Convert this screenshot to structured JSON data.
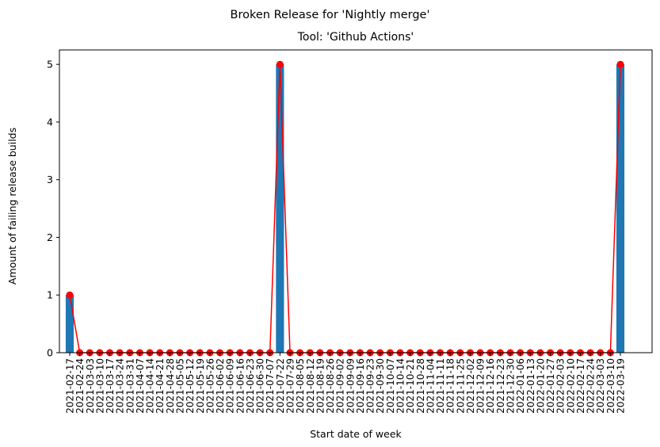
{
  "chart_data": {
    "type": "bar",
    "title": "Broken Release for 'Nightly merge'",
    "subtitle": "Tool: 'Github Actions'",
    "xlabel": "Start date of week",
    "ylabel": "Amount of failing release builds",
    "ylim": [
      0,
      5.25
    ],
    "yticks": [
      0,
      1,
      2,
      3,
      4,
      5
    ],
    "grid": false,
    "categories": [
      "2021-02-17",
      "2021-02-24",
      "2021-03-03",
      "2021-03-10",
      "2021-03-17",
      "2021-03-24",
      "2021-03-31",
      "2021-04-07",
      "2021-04-14",
      "2021-04-21",
      "2021-04-28",
      "2021-05-05",
      "2021-05-12",
      "2021-05-19",
      "2021-05-26",
      "2021-06-02",
      "2021-06-09",
      "2021-06-16",
      "2021-06-23",
      "2021-06-30",
      "2021-07-07",
      "2021-07-22",
      "2021-07-29",
      "2021-08-05",
      "2021-08-12",
      "2021-08-19",
      "2021-08-26",
      "2021-09-02",
      "2021-09-09",
      "2021-09-16",
      "2021-09-23",
      "2021-09-30",
      "2021-10-07",
      "2021-10-14",
      "2021-10-21",
      "2021-10-28",
      "2021-11-04",
      "2021-11-11",
      "2021-11-18",
      "2021-11-25",
      "2021-12-02",
      "2021-12-09",
      "2021-12-16",
      "2021-12-23",
      "2021-12-30",
      "2022-01-06",
      "2022-01-13",
      "2022-01-20",
      "2022-01-27",
      "2022-02-03",
      "2022-02-10",
      "2022-02-17",
      "2022-02-24",
      "2022-03-03",
      "2022-03-10",
      "2022-03-19"
    ],
    "series": [
      {
        "type": "bar",
        "color": "#1f77b4",
        "values": [
          1,
          0,
          0,
          0,
          0,
          0,
          0,
          0,
          0,
          0,
          0,
          0,
          0,
          0,
          0,
          0,
          0,
          0,
          0,
          0,
          0,
          5,
          0,
          0,
          0,
          0,
          0,
          0,
          0,
          0,
          0,
          0,
          0,
          0,
          0,
          0,
          0,
          0,
          0,
          0,
          0,
          0,
          0,
          0,
          0,
          0,
          0,
          0,
          0,
          0,
          0,
          0,
          0,
          0,
          0,
          5
        ]
      },
      {
        "type": "line",
        "color": "#ff0000",
        "marker": "circle",
        "values": [
          1,
          0,
          0,
          0,
          0,
          0,
          0,
          0,
          0,
          0,
          0,
          0,
          0,
          0,
          0,
          0,
          0,
          0,
          0,
          0,
          0,
          5,
          0,
          0,
          0,
          0,
          0,
          0,
          0,
          0,
          0,
          0,
          0,
          0,
          0,
          0,
          0,
          0,
          0,
          0,
          0,
          0,
          0,
          0,
          0,
          0,
          0,
          0,
          0,
          0,
          0,
          0,
          0,
          0,
          0,
          5
        ]
      }
    ]
  }
}
